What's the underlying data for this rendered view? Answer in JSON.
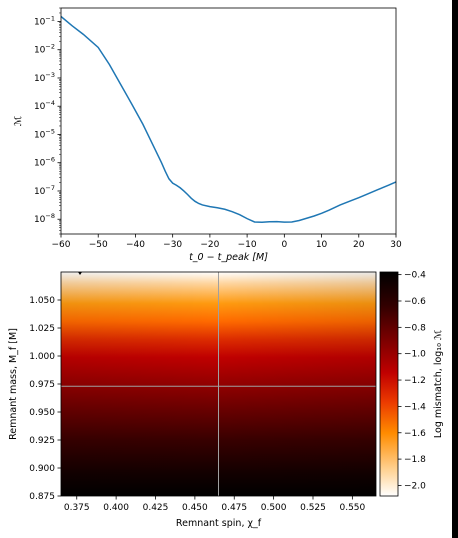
{
  "chart_data": [
    {
      "type": "line",
      "xlabel": "t_0 − t_peak [M]",
      "ylabel": "ℳ",
      "xlim": [
        -60,
        30
      ],
      "ylim": [
        3e-09,
        0.3
      ],
      "yscale": "log",
      "xticks": [
        "−60",
        "−50",
        "−40",
        "−30",
        "−20",
        "−10",
        "0",
        "10",
        "20",
        "30"
      ],
      "yticks": [
        "10^−8",
        "10^−7",
        "10^−6",
        "10^−5",
        "10^−4",
        "10^−3",
        "10^−2",
        "10^−1"
      ],
      "line_color": "#1f77b4",
      "series": [
        {
          "x": [
            -60,
            -57,
            -54,
            -50,
            -47,
            -44,
            -41,
            -38,
            -35,
            -33,
            -32,
            -31,
            -30,
            -29,
            -28,
            -27,
            -26,
            -25,
            -24,
            -23,
            -22,
            -20,
            -18,
            -16,
            -14,
            -12,
            -10,
            -8,
            -6,
            -4,
            -2,
            0,
            2,
            4,
            6,
            8,
            10,
            12,
            15,
            18,
            20,
            22,
            25,
            28,
            30
          ],
          "y": [
            0.15,
            0.07,
            0.035,
            0.012,
            0.003,
            0.0006,
            0.00012,
            2.3e-05,
            3.5e-06,
            1e-06,
            5e-07,
            2.7e-07,
            1.9e-07,
            1.6e-07,
            1.3e-07,
            1e-07,
            7.5e-08,
            5.5e-08,
            4.3e-08,
            3.6e-08,
            3.2e-08,
            2.8e-08,
            2.55e-08,
            2.25e-08,
            1.85e-08,
            1.45e-08,
            1.05e-08,
            8e-09,
            7.8e-09,
            8.1e-09,
            8.2e-09,
            7.9e-09,
            8e-09,
            9e-09,
            1.08e-08,
            1.3e-08,
            1.62e-08,
            2.1e-08,
            3.2e-08,
            4.6e-08,
            5.8e-08,
            7.5e-08,
            1.1e-07,
            1.6e-07,
            2.1e-07
          ]
        }
      ]
    },
    {
      "type": "heatmap",
      "xlabel": "Remnant spin, χ_f",
      "ylabel": "Remnant mass, M_f [M]",
      "xlim": [
        0.365,
        0.565
      ],
      "ylim": [
        0.875,
        1.075
      ],
      "xticks": [
        "0.375",
        "0.400",
        "0.425",
        "0.450",
        "0.475",
        "0.500",
        "0.525",
        "0.550"
      ],
      "yticks": [
        "0.875",
        "0.900",
        "0.925",
        "0.950",
        "0.975",
        "1.000",
        "1.025",
        "1.050"
      ],
      "colorbar_label": "Log mismatch, log₁₀ ℳ",
      "colorbar_range": [
        -2.08,
        -0.38
      ],
      "colorbar_ticks": [
        "−2.0",
        "−1.8",
        "−1.6",
        "−1.4",
        "−1.2",
        "−1.0",
        "−0.8",
        "−0.6",
        "−0.4"
      ],
      "colormap": "gist_heat_r",
      "crosshair": {
        "x": 0.465,
        "y": 0.973,
        "color": "#a0a0a0"
      },
      "mismatch_vs_mass": {
        "mass": [
          0.875,
          0.9,
          0.925,
          0.95,
          0.975,
          0.99,
          1.0,
          1.01,
          1.02,
          1.03,
          1.04,
          1.05,
          1.06,
          1.075
        ],
        "log10_mismatch": [
          -0.4,
          -0.5,
          -0.62,
          -0.74,
          -0.86,
          -0.93,
          -0.99,
          -1.06,
          -1.15,
          -1.27,
          -1.42,
          -1.62,
          -1.85,
          -2.08
        ]
      }
    }
  ]
}
